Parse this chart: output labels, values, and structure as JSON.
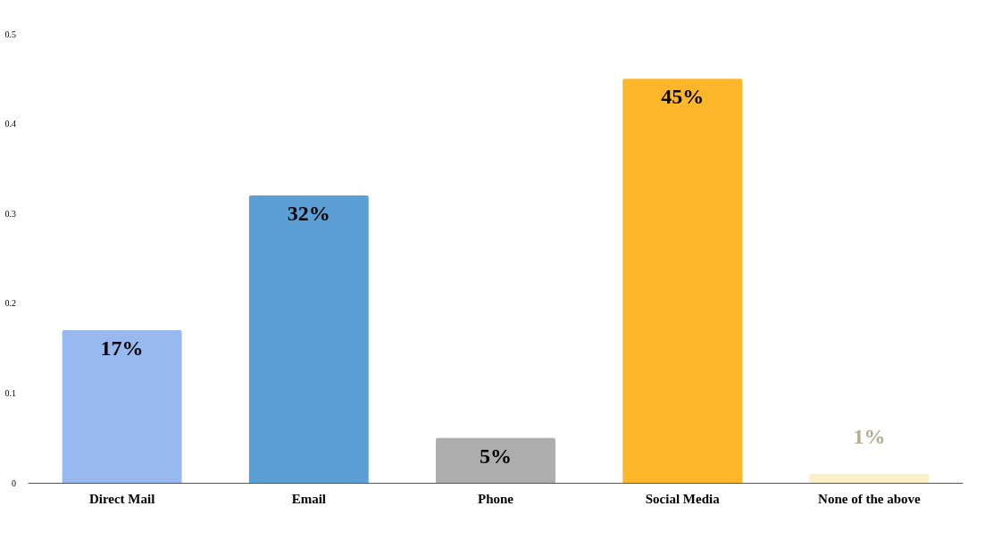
{
  "chart_data": {
    "type": "bar",
    "categories": [
      "Direct Mail",
      "Email",
      "Phone",
      "Social Media",
      "None of the above"
    ],
    "values": [
      0.17,
      0.32,
      0.05,
      0.45,
      0.01
    ],
    "colors": [
      "#97b9ef",
      "#5b9fd5",
      "#adadad",
      "#feb72b",
      "#fdefc7"
    ],
    "value_labels": [
      "17%",
      "32%",
      "5%",
      "45%",
      "1%"
    ],
    "ylim": [
      0,
      0.5
    ],
    "yticks": [
      0,
      0.1,
      0.2,
      0.3,
      0.4,
      0.5
    ],
    "grid": false
  }
}
